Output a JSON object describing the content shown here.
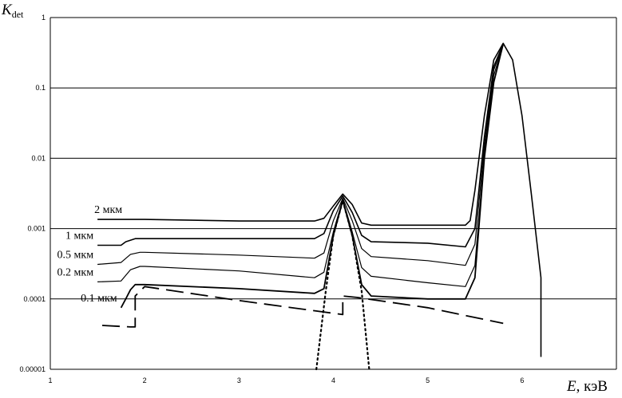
{
  "chart_data": {
    "type": "line",
    "ylabel": "K",
    "ylabel_sub": "det",
    "xlabel_var": "E",
    "xlabel_unit": ", кэВ",
    "y_scale": "log",
    "ylim": [
      1e-05,
      1
    ],
    "xlim": [
      1,
      7
    ],
    "grid": "horizontal",
    "y_ticks": [
      {
        "value": 1,
        "label": "1"
      },
      {
        "value": 0.1,
        "label": "0.1"
      },
      {
        "value": 0.01,
        "label": "0.01"
      },
      {
        "value": 0.001,
        "label": "0.001"
      },
      {
        "value": 0.0001,
        "label": "0.0001"
      },
      {
        "value": 1e-05,
        "label": "0.00001"
      }
    ],
    "x_ticks": [
      {
        "value": 1,
        "label": "1"
      },
      {
        "value": 2,
        "label": "2"
      },
      {
        "value": 3,
        "label": "3"
      },
      {
        "value": 4,
        "label": "4"
      },
      {
        "value": 5,
        "label": "5"
      },
      {
        "value": 6,
        "label": "6"
      }
    ],
    "series": [
      {
        "name": "2 мкм",
        "style": "solid",
        "width": 1.6,
        "points": [
          [
            1.5,
            0.00135
          ],
          [
            2.0,
            0.00135
          ],
          [
            3.0,
            0.00128
          ],
          [
            3.8,
            0.00128
          ],
          [
            3.9,
            0.0014
          ],
          [
            4.0,
            0.0021
          ],
          [
            4.1,
            0.0031
          ],
          [
            4.2,
            0.0022
          ],
          [
            4.3,
            0.0012
          ],
          [
            4.4,
            0.00112
          ],
          [
            5.0,
            0.00112
          ],
          [
            5.4,
            0.00112
          ],
          [
            5.45,
            0.0013
          ],
          [
            5.5,
            0.0035
          ],
          [
            5.6,
            0.04
          ],
          [
            5.7,
            0.25
          ],
          [
            5.8,
            0.43
          ],
          [
            5.9,
            0.25
          ],
          [
            6.0,
            0.04
          ],
          [
            6.1,
            0.003
          ],
          [
            6.2,
            0.0002
          ],
          [
            6.2,
            1.5e-05
          ]
        ]
      },
      {
        "name": "1 мкм",
        "style": "solid",
        "width": 1.6,
        "points": [
          [
            1.5,
            0.00058
          ],
          [
            1.75,
            0.00058
          ],
          [
            1.8,
            0.00065
          ],
          [
            1.9,
            0.00072
          ],
          [
            2.0,
            0.00072
          ],
          [
            3.0,
            0.00072
          ],
          [
            3.8,
            0.00072
          ],
          [
            3.9,
            0.00085
          ],
          [
            4.0,
            0.0018
          ],
          [
            4.1,
            0.0029
          ],
          [
            4.2,
            0.0017
          ],
          [
            4.3,
            0.0008
          ],
          [
            4.4,
            0.00065
          ],
          [
            5.0,
            0.00062
          ],
          [
            5.4,
            0.00055
          ],
          [
            5.5,
            0.001
          ],
          [
            5.6,
            0.02
          ],
          [
            5.7,
            0.2
          ],
          [
            5.8,
            0.42
          ]
        ]
      },
      {
        "name": "0.5 мкм",
        "style": "solid",
        "width": 1.2,
        "points": [
          [
            1.5,
            0.00031
          ],
          [
            1.75,
            0.00033
          ],
          [
            1.85,
            0.00043
          ],
          [
            1.95,
            0.00046
          ],
          [
            2.0,
            0.00046
          ],
          [
            3.0,
            0.00042
          ],
          [
            3.8,
            0.00038
          ],
          [
            3.9,
            0.00045
          ],
          [
            4.0,
            0.0013
          ],
          [
            4.1,
            0.0027
          ],
          [
            4.2,
            0.0013
          ],
          [
            4.3,
            0.00052
          ],
          [
            4.4,
            0.0004
          ],
          [
            5.0,
            0.00035
          ],
          [
            5.4,
            0.0003
          ],
          [
            5.5,
            0.0006
          ],
          [
            5.6,
            0.015
          ],
          [
            5.7,
            0.18
          ],
          [
            5.8,
            0.42
          ]
        ]
      },
      {
        "name": "0.2 мкм",
        "style": "solid",
        "width": 1.2,
        "points": [
          [
            1.5,
            0.000175
          ],
          [
            1.75,
            0.00018
          ],
          [
            1.85,
            0.00026
          ],
          [
            1.95,
            0.00029
          ],
          [
            2.0,
            0.00029
          ],
          [
            3.0,
            0.00025
          ],
          [
            3.8,
            0.0002
          ],
          [
            3.9,
            0.00024
          ],
          [
            4.0,
            0.0009
          ],
          [
            4.1,
            0.0026
          ],
          [
            4.2,
            0.0009
          ],
          [
            4.3,
            0.00028
          ],
          [
            4.4,
            0.00021
          ],
          [
            5.0,
            0.00017
          ],
          [
            5.4,
            0.00015
          ],
          [
            5.5,
            0.0003
          ],
          [
            5.6,
            0.012
          ],
          [
            5.7,
            0.15
          ],
          [
            5.8,
            0.42
          ]
        ]
      },
      {
        "name": "0.1 мкм",
        "style": "solid",
        "width": 1.8,
        "points": [
          [
            1.75,
            7.5e-05
          ],
          [
            1.8,
            0.0001
          ],
          [
            1.85,
            0.000135
          ],
          [
            1.9,
            0.00016
          ],
          [
            2.0,
            0.00016
          ],
          [
            3.0,
            0.00014
          ],
          [
            3.8,
            0.00012
          ],
          [
            3.9,
            0.00014
          ],
          [
            4.0,
            0.0008
          ],
          [
            4.1,
            0.0025
          ],
          [
            4.2,
            0.0008
          ],
          [
            4.3,
            0.00016
          ],
          [
            4.4,
            0.00011
          ],
          [
            5.0,
            0.0001
          ],
          [
            5.4,
            0.0001
          ],
          [
            5.5,
            0.0002
          ],
          [
            5.6,
            0.01
          ],
          [
            5.7,
            0.12
          ],
          [
            5.8,
            0.42
          ]
        ]
      },
      {
        "name": "",
        "style": "dashed",
        "width": 1.8,
        "points": [
          [
            1.55,
            4.2e-05
          ],
          [
            1.85,
            4e-05
          ],
          [
            1.9,
            4e-05
          ],
          [
            1.9,
            0.00011
          ],
          [
            2.0,
            0.00015
          ],
          [
            3.0,
            9.5e-05
          ],
          [
            4.1,
            6e-05
          ],
          [
            4.1,
            0.00011
          ],
          [
            4.25,
            0.000105
          ],
          [
            5.0,
            7.5e-05
          ],
          [
            5.8,
            4.5e-05
          ]
        ]
      },
      {
        "name": "",
        "style": "dotted",
        "width": 2.2,
        "points": [
          [
            3.82,
            1e-05
          ],
          [
            3.92,
            0.00013
          ],
          [
            4.0,
            0.0008
          ],
          [
            4.1,
            0.0025
          ],
          [
            4.2,
            0.0008
          ],
          [
            4.3,
            0.00013
          ],
          [
            4.38,
            1e-05
          ]
        ]
      }
    ]
  }
}
